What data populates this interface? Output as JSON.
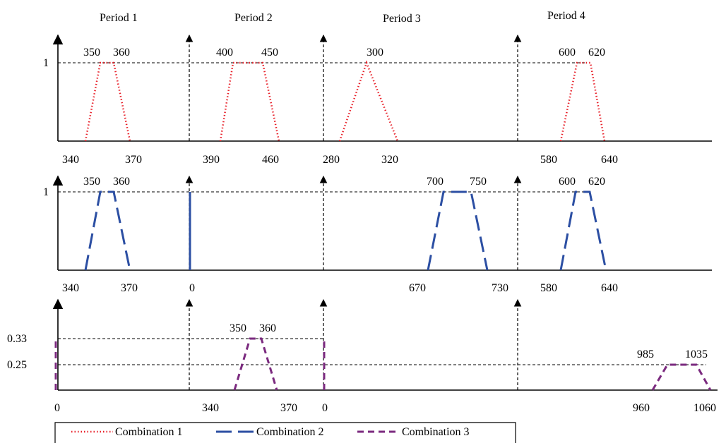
{
  "colors": {
    "axis": "#000000",
    "combination_1": "#e8212a",
    "combination_2": "#2c4fa3",
    "combination_3": "#7b2a7f"
  },
  "periods": [
    "Period 1",
    "Period 2",
    "Period 3",
    "Period 4"
  ],
  "level_labels": {
    "row1": "1",
    "row2": "1",
    "row3_high": "0.33",
    "row3_low": "0.25"
  },
  "rows": [
    {
      "name": "Combination 1",
      "tick_labels": {
        "p1": {
          "left": "340",
          "peak_left": "350",
          "peak_right": "360",
          "right": "370"
        },
        "p2": {
          "left": "390",
          "peak_left": "400",
          "peak_right": "450",
          "right": "460"
        },
        "p3": {
          "left": "280",
          "peak": "300",
          "right": "320"
        },
        "p4": {
          "left": "580",
          "peak_left": "600",
          "peak_right": "620",
          "right": "640"
        }
      }
    },
    {
      "name": "Combination 2",
      "tick_labels": {
        "p1": {
          "left": "340",
          "peak_left": "350",
          "peak_right": "360",
          "right": "370"
        },
        "p2": {
          "zero": "0"
        },
        "p3": {
          "left": "670",
          "peak_left": "700",
          "peak_right": "750",
          "right": "730"
        },
        "p4": {
          "left": "580",
          "peak_left": "600",
          "peak_right": "620",
          "right": "640"
        }
      }
    },
    {
      "name": "Combination 3",
      "tick_labels": {
        "p1": {
          "zero": "0"
        },
        "p2": {
          "left": "340",
          "peak_left": "350",
          "peak_right": "360",
          "right": "370"
        },
        "p3": {
          "zero": "0"
        },
        "p4": {
          "left": "960",
          "peak_left": "985",
          "peak_right": "1035",
          "right": "1060"
        }
      }
    }
  ],
  "legend": [
    {
      "label": "Combination 1",
      "style": "dotted"
    },
    {
      "label": "Combination 2",
      "style": "long-dash"
    },
    {
      "label": "Combination 3",
      "style": "dash"
    }
  ]
}
